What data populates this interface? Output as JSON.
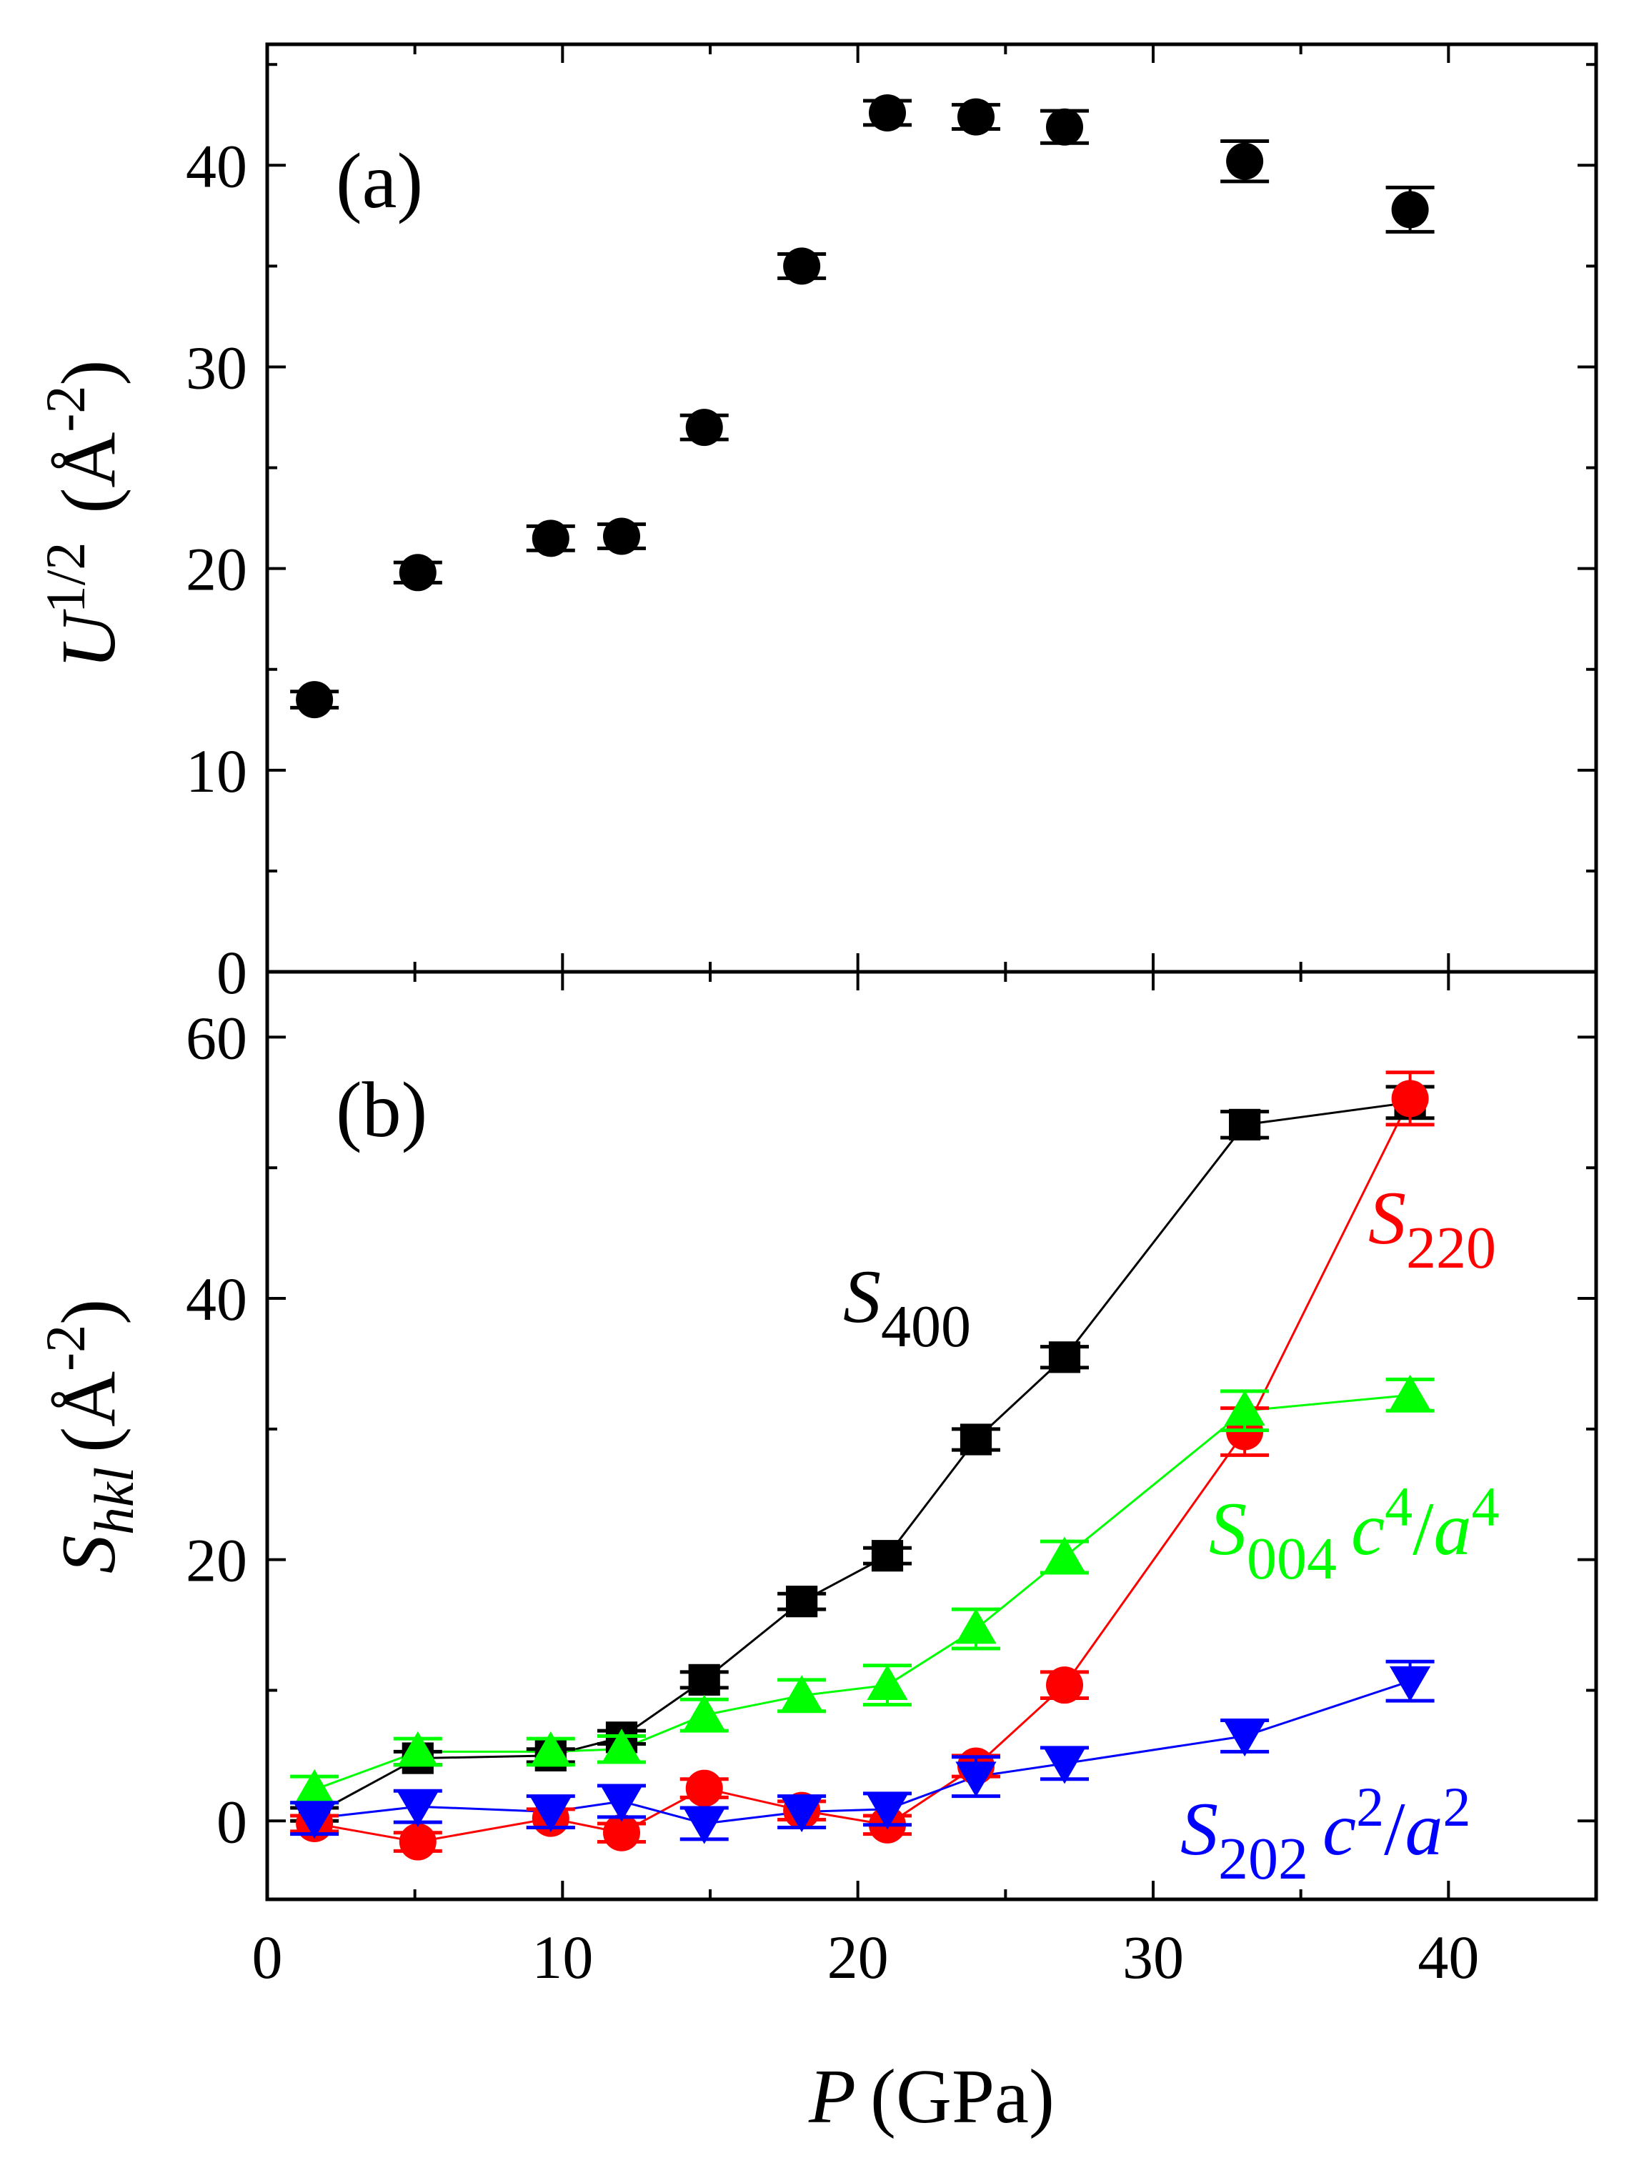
{
  "colors": {
    "black": "#000000",
    "red": "#ff0000",
    "green": "#00ff00",
    "blue": "#0000ff"
  },
  "chart_data": [
    {
      "type": "scatter",
      "panel_label": "(a)",
      "ylabel": {
        "base": "U",
        "sup": "1/2",
        "unit_open": "(Å",
        "unit_sup": "-2",
        "unit_close": ")"
      },
      "ylim": [
        0,
        46
      ],
      "yticks": [
        0,
        10,
        20,
        30,
        40
      ],
      "xlim": [
        0,
        45
      ],
      "series": [
        {
          "name": "U^1/2",
          "color": "#000000",
          "marker": "circle",
          "line": false,
          "x": [
            1.6,
            5.1,
            9.6,
            12.0,
            14.8,
            18.1,
            21.0,
            24.0,
            27.0,
            33.1,
            38.7
          ],
          "y": [
            13.5,
            19.8,
            21.5,
            21.6,
            27.0,
            35.0,
            42.6,
            42.4,
            41.9,
            40.2,
            37.8
          ],
          "err": [
            0.4,
            0.5,
            0.6,
            0.6,
            0.6,
            0.6,
            0.6,
            0.6,
            0.8,
            1.0,
            1.1
          ]
        }
      ]
    },
    {
      "type": "line",
      "panel_label": "(b)",
      "ylabel": {
        "base": "S",
        "sub": "hkl",
        "unit_open": "(Å",
        "unit_sup": "-2",
        "unit_close": ")"
      },
      "ylim": [
        -6,
        65
      ],
      "yticks": [
        0,
        20,
        40,
        60
      ],
      "xlim": [
        0,
        45
      ],
      "xticks": [
        0,
        10,
        20,
        30,
        40
      ],
      "xlabel": {
        "var": "P",
        "unit": "(GPa)"
      },
      "series": [
        {
          "name": "S400",
          "color": "#000000",
          "marker": "square",
          "x": [
            1.6,
            5.1,
            9.6,
            12.0,
            14.8,
            18.1,
            21.0,
            24.0,
            27.0,
            33.1,
            38.7
          ],
          "y": [
            0.5,
            4.8,
            5.0,
            6.4,
            10.8,
            16.8,
            20.3,
            29.2,
            35.5,
            53.3,
            55.0
          ],
          "err": [
            0.5,
            0.5,
            0.5,
            0.5,
            0.6,
            0.6,
            0.6,
            0.8,
            0.8,
            1.0,
            1.2
          ]
        },
        {
          "name": "S220",
          "color": "#ff0000",
          "marker": "circle",
          "x": [
            1.6,
            5.1,
            9.6,
            12.0,
            14.8,
            18.1,
            21.0,
            24.0,
            27.0,
            33.1,
            38.7
          ],
          "y": [
            -0.2,
            -1.6,
            0.2,
            -0.9,
            2.5,
            0.8,
            -0.3,
            4.2,
            10.4,
            29.8,
            55.3
          ],
          "err": [
            0.6,
            0.7,
            0.7,
            0.7,
            0.7,
            0.7,
            0.7,
            0.8,
            1.0,
            1.8,
            2.0
          ]
        },
        {
          "name": "S004 c^4/a^4",
          "color": "#00ff00",
          "marker": "triangle-up",
          "x": [
            1.6,
            5.1,
            9.6,
            12.0,
            14.8,
            18.1,
            21.0,
            24.0,
            27.0,
            33.1,
            38.7
          ],
          "y": [
            2.4,
            5.3,
            5.3,
            5.5,
            8.1,
            9.6,
            10.4,
            14.7,
            20.2,
            31.4,
            32.6
          ],
          "err": [
            1.0,
            1.0,
            1.0,
            1.0,
            1.2,
            1.2,
            1.5,
            1.5,
            1.2,
            1.5,
            1.2
          ]
        },
        {
          "name": "S202 c^2/a^2",
          "color": "#0000ff",
          "marker": "triangle-down",
          "x": [
            1.6,
            5.1,
            9.6,
            12.0,
            14.8,
            18.1,
            21.0,
            24.0,
            27.0,
            33.1,
            38.7
          ],
          "y": [
            0.2,
            1.1,
            0.7,
            1.5,
            -0.2,
            0.7,
            0.9,
            3.4,
            4.4,
            6.5,
            10.7
          ],
          "err": [
            1.2,
            1.2,
            1.2,
            1.2,
            1.2,
            1.2,
            1.2,
            1.5,
            1.2,
            1.2,
            1.5
          ]
        }
      ],
      "annotations": {
        "s400": {
          "base": "S",
          "sub": "400"
        },
        "s220": {
          "base": "S",
          "sub": "220"
        },
        "s004": {
          "base": "S",
          "sub": "004",
          "factor_a": "c",
          "sup_a": "4",
          "slash": "/",
          "factor_b": "a",
          "sup_b": "4"
        },
        "s202": {
          "base": "S",
          "sub": "202",
          "factor_a": "c",
          "sup_a": "2",
          "slash": "/",
          "factor_b": "a",
          "sup_b": "2"
        }
      }
    }
  ]
}
